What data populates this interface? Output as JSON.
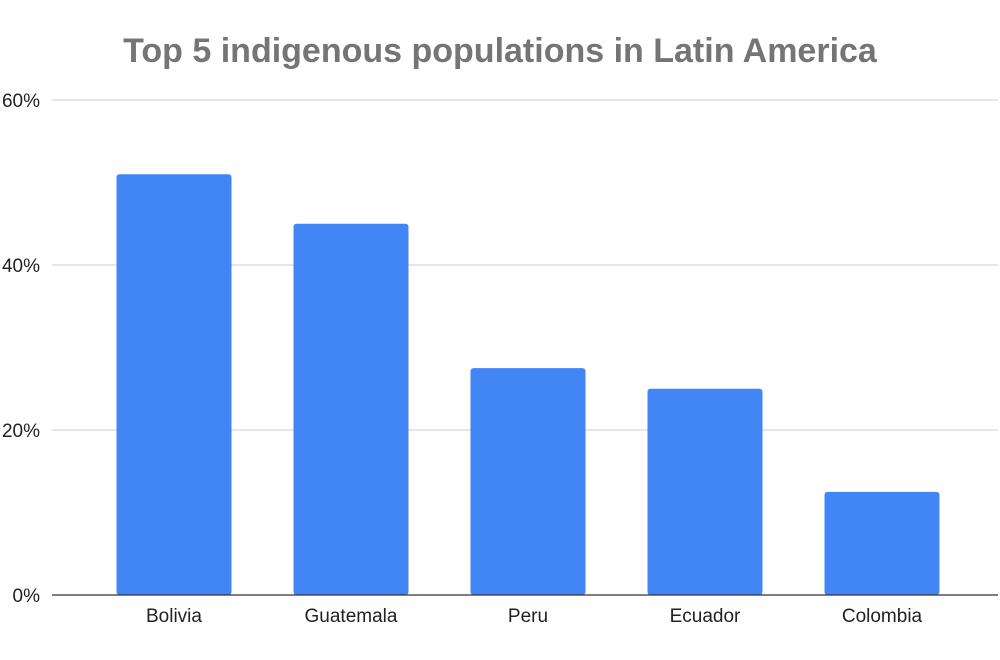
{
  "chart_data": {
    "type": "bar",
    "title": "Top 5 indigenous populations in Latin America",
    "xlabel": "",
    "ylabel": "",
    "categories": [
      "Bolivia",
      "Guatemala",
      "Peru",
      "Ecuador",
      "Colombia"
    ],
    "series": [
      {
        "values": [
          51,
          45,
          27.5,
          25,
          12.5
        ]
      }
    ],
    "ylim": [
      0,
      60
    ],
    "yticks": [
      0,
      20,
      40,
      60
    ],
    "ytick_labels": [
      "0%",
      "20%",
      "40%",
      "60%"
    ],
    "grid": true,
    "legend": "none",
    "bar_color": "#4285f4"
  }
}
